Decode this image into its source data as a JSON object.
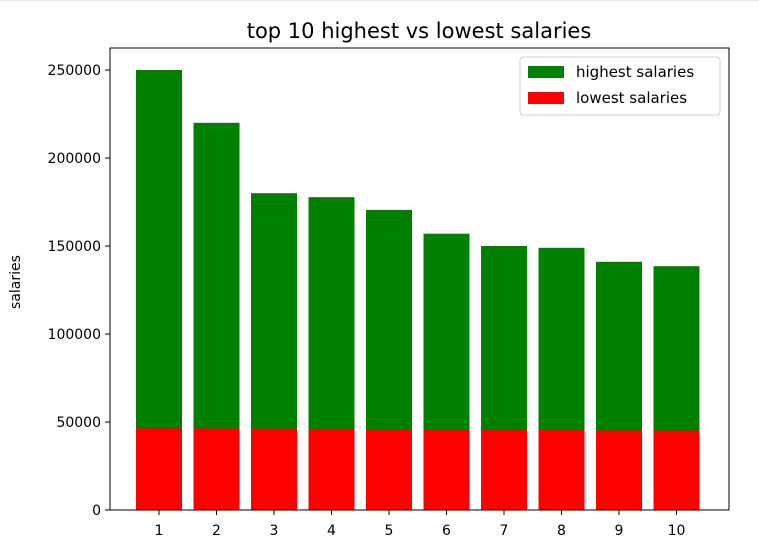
{
  "chart_data": {
    "type": "bar",
    "title": "top 10 highest vs lowest salaries",
    "xlabel": "",
    "ylabel": "salaries",
    "categories": [
      "1",
      "2",
      "3",
      "4",
      "5",
      "6",
      "7",
      "8",
      "9",
      "10"
    ],
    "series": [
      {
        "name": "highest salaries",
        "color": "#008000",
        "values": [
          250000,
          220000,
          180000,
          177700,
          170500,
          157000,
          150000,
          149000,
          141000,
          138500
        ]
      },
      {
        "name": "lowest salaries",
        "color": "#ff0000",
        "values": [
          46500,
          46400,
          46300,
          46200,
          45800,
          45700,
          45600,
          45500,
          45300,
          45200
        ]
      }
    ],
    "ylim": [
      0,
      262500
    ],
    "yticks": [
      0,
      50000,
      100000,
      150000,
      200000,
      250000
    ],
    "legend": "top-right",
    "grid": false
  }
}
